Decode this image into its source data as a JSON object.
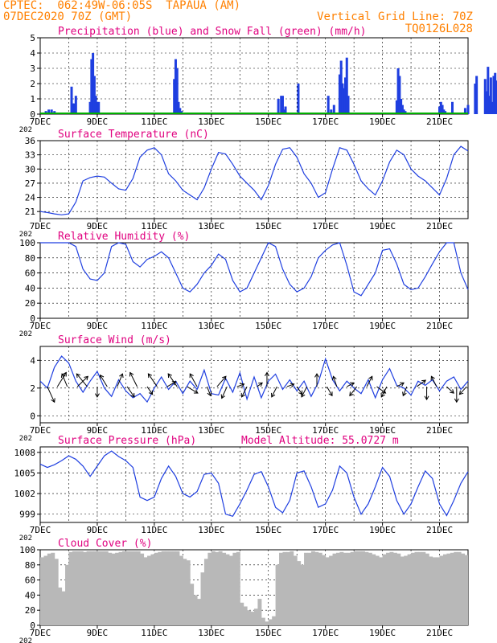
{
  "header": {
    "line1_left": "CPTEC:  062:49W-06:05S  TAPAUA (AM)",
    "line2_left": "07DEC2020 70Z (GMT)",
    "line2_right": "Vertical Grid Line: 70Z",
    "line3_right": "TQ0126L028"
  },
  "colors": {
    "header": "#ff8000",
    "title": "#e0007f",
    "series": "#1f3fe0",
    "snow": "#00b000",
    "cloud": "#b8b8b8"
  },
  "x_ticks": [
    "7DEC",
    "9DEC",
    "11DEC",
    "13DEC",
    "15DEC",
    "17DEC",
    "19DEC",
    "21DEC"
  ],
  "x_year_label": "202",
  "chart_data": [
    {
      "id": "precip",
      "type": "bar",
      "title": "Precipitation (blue) and Snow Fall (green) (mm/h)",
      "ylim": [
        0,
        5
      ],
      "yticks": [
        0,
        1,
        2,
        3,
        4,
        5
      ],
      "x_unit": "days since 07DEC 00Z",
      "series": [
        {
          "name": "Precipitation",
          "x": [
            0.2,
            0.3,
            0.4,
            0.5,
            0.6,
            1.1,
            1.15,
            1.2,
            1.25,
            1.75,
            1.8,
            1.85,
            1.9,
            1.95,
            2.0,
            2.05,
            4.7,
            4.75,
            4.8,
            4.85,
            4.9,
            4.95,
            8.35,
            8.45,
            8.5,
            8.55,
            8.6,
            9.05,
            10.1,
            10.2,
            10.3,
            10.5,
            10.55,
            10.6,
            10.65,
            10.7,
            10.75,
            10.8,
            12.5,
            12.55,
            12.6,
            12.65,
            12.7,
            12.75,
            12.8,
            14.0,
            14.05,
            14.1,
            14.15,
            14.2,
            14.45,
            14.9,
            15.0,
            15.25,
            15.3,
            15.6,
            15.65,
            15.7,
            15.75,
            15.8,
            15.85,
            15.9,
            15.95,
            16.0,
            16.05,
            16.1,
            16.15
          ],
          "values": [
            0.2,
            0.3,
            0.3,
            0.2,
            0.1,
            1.8,
            0.7,
            0.7,
            1.2,
            0.8,
            3.6,
            4.0,
            2.5,
            1.2,
            0.8,
            0.8,
            2.3,
            3.6,
            3.0,
            0.8,
            0.4,
            0.2,
            1.0,
            1.2,
            1.2,
            0.3,
            0.5,
            2.0,
            1.2,
            0.3,
            0.6,
            2.6,
            3.5,
            2.0,
            1.7,
            2.4,
            3.7,
            1.2,
            0.9,
            3.0,
            2.5,
            1.0,
            0.6,
            0.3,
            0.2,
            0.5,
            0.8,
            0.6,
            0.3,
            0.2,
            0.8,
            0.4,
            0.6,
            2.0,
            2.5,
            2.3,
            1.5,
            3.1,
            1.2,
            2.4,
            0.8,
            2.5,
            2.7,
            2.2,
            0.8,
            2.0,
            1.0
          ]
        },
        {
          "name": "Snow Fall",
          "x": [
            0,
            16.3
          ],
          "values": [
            0,
            0
          ]
        }
      ]
    },
    {
      "id": "temperature",
      "type": "line",
      "title": "Surface Temperature (nC)",
      "ylim": [
        19.5,
        36
      ],
      "yticks": [
        21,
        24,
        27,
        30,
        33,
        36
      ],
      "x_step_days": 0.25,
      "series": [
        {
          "name": "Temperature",
          "values": [
            21.0,
            20.8,
            20.5,
            20.3,
            20.5,
            23.0,
            27.5,
            28.2,
            28.5,
            28.3,
            27.0,
            25.8,
            25.5,
            28.0,
            32.5,
            34.0,
            34.5,
            33.0,
            29.0,
            27.5,
            25.5,
            24.5,
            23.5,
            26.0,
            30.0,
            33.5,
            33.2,
            31.0,
            28.5,
            27.0,
            25.5,
            23.5,
            26.5,
            31.0,
            34.2,
            34.5,
            32.5,
            29.0,
            27.0,
            24.0,
            25.0,
            30.0,
            34.5,
            34.0,
            31.0,
            27.5,
            25.8,
            24.5,
            27.5,
            31.5,
            34.0,
            33.0,
            30.0,
            28.5,
            27.5,
            26.0,
            24.5,
            28.0,
            33.0,
            34.8,
            33.8,
            30.5,
            27.5,
            25.5,
            24.0,
            28.0,
            33.0,
            35.2,
            33.5,
            30.0,
            28.5,
            27.0,
            25.2,
            29.5,
            30.5,
            30.0,
            29.0,
            28.5,
            27.0,
            25.3,
            24.8,
            29.0,
            33.0,
            34.2,
            33.0,
            30.5,
            28.0,
            26.5,
            25.0,
            28.0,
            30.5,
            32.0,
            30.5,
            28.0,
            26.0,
            25.0,
            30.0,
            33.5,
            34.2,
            32.5,
            30.0,
            28.0,
            27.0,
            28.5,
            28.0,
            27.5
          ]
        }
      ]
    },
    {
      "id": "humidity",
      "type": "line",
      "title": "Relative Humidity (%)",
      "ylim": [
        0,
        100
      ],
      "yticks": [
        0,
        20,
        40,
        60,
        80,
        100
      ],
      "x_step_days": 0.25,
      "series": [
        {
          "name": "Relative Humidity",
          "values": [
            100,
            100,
            100,
            100,
            100,
            95,
            65,
            52,
            50,
            60,
            95,
            100,
            98,
            75,
            68,
            78,
            82,
            88,
            80,
            60,
            40,
            35,
            45,
            60,
            70,
            85,
            78,
            50,
            35,
            40,
            60,
            80,
            100,
            95,
            65,
            45,
            35,
            40,
            55,
            80,
            90,
            97,
            100,
            70,
            35,
            30,
            45,
            60,
            90,
            92,
            72,
            45,
            38,
            40,
            55,
            72,
            88,
            100,
            100,
            60,
            38,
            40,
            50,
            68,
            90,
            100,
            80,
            55,
            38,
            32,
            40,
            60,
            85,
            65,
            60,
            72,
            75,
            80,
            90,
            80,
            55,
            38,
            42,
            60,
            72,
            90,
            95,
            80,
            55,
            45,
            60,
            82,
            100,
            100,
            95,
            68,
            35,
            32,
            40,
            60,
            80,
            85,
            80,
            62,
            60,
            78
          ]
        }
      ]
    },
    {
      "id": "wind",
      "type": "line",
      "title": "Surface Wind (m/s)",
      "ylim": [
        -0.5,
        5
      ],
      "yticks": [
        0,
        2,
        4
      ],
      "x_step_days": 0.25,
      "series": [
        {
          "name": "Wind Speed",
          "values": [
            2.5,
            2.0,
            3.5,
            4.3,
            3.8,
            2.5,
            1.7,
            2.5,
            3.2,
            2.0,
            1.4,
            2.6,
            1.8,
            1.3,
            1.6,
            1.0,
            2.0,
            2.8,
            1.9,
            2.5,
            1.6,
            2.5,
            1.9,
            3.3,
            1.6,
            1.5,
            2.7,
            1.7,
            3.1,
            1.2,
            2.8,
            1.3,
            2.5,
            3.0,
            1.9,
            2.6,
            1.8,
            2.5,
            1.4,
            2.4,
            4.1,
            2.6,
            1.8,
            2.5,
            2.0,
            1.6,
            2.6,
            1.3,
            2.6,
            3.4,
            2.2,
            2.0,
            1.5,
            2.5,
            2.2,
            2.6,
            1.8,
            2.5,
            2.8,
            1.9,
            2.5,
            2.0,
            1.8,
            2.4,
            3.0,
            1.8,
            3.5,
            2.6,
            2.0,
            2.8,
            1.7,
            2.2,
            2.5,
            3.0,
            1.8,
            2.3,
            2.5,
            2.0,
            2.6,
            2.8,
            1.7,
            1.9,
            3.4,
            2.5,
            2.0,
            2.7,
            3.0,
            2.1,
            2.9,
            1.7,
            1.5,
            2.8,
            3.3,
            1.6,
            2.2,
            0.3,
            3.9,
            2.8,
            3.0,
            2.4,
            2.1,
            4.1,
            3.2,
            2.0,
            0.2,
            2.3
          ]
        },
        {
          "name": "Wind Arrows (m/s)",
          "u": [
            0.4,
            0.5,
            -0.3,
            0.6,
            -0.6,
            0.0,
            -0.4,
            0.3,
            0.4,
            -0.4,
            0.3,
            -0.5,
            0.5,
            -0.5,
            0.6,
            -0.4,
            0.2,
            0.5,
            -0.3,
            0.4,
            -0.3,
            0.3,
            0.0,
            -0.3,
            0.4,
            0.3,
            -0.3,
            0.0,
            0.3,
            -0.2,
            0.4,
            -0.4,
            0.3,
            0.5,
            -0.3,
            0.4,
            -0.2,
            0.5,
            0.0,
            -0.3,
            0.4,
            0.0,
            -0.4
          ],
          "v": [
            -1.2,
            1.1,
            1.0,
            0.8,
            1.0,
            -0.8,
            0.9,
            1.0,
            -0.8,
            1.1,
            -0.6,
            1.0,
            0.4,
            1.0,
            -0.5,
            1.0,
            -0.7,
            0.8,
            -0.9,
            0.2,
            -0.8,
            0.3,
            1.1,
            -0.8,
            0.2,
            -0.6,
            -0.8,
            1.0,
            -0.7,
            0.8,
            0.3,
            -0.7,
            0.8,
            -0.5,
            -0.8,
            0.3,
            -0.7,
            0.5,
            -1.0,
            0.8,
            -0.5,
            -1.2,
            -0.6
          ]
        }
      ]
    },
    {
      "id": "pressure",
      "type": "line",
      "title": "Surface Pressure (hPa)",
      "annotation": "Model Altitude: 55.0727 m",
      "ylim": [
        997.8,
        1008.8
      ],
      "yticks": [
        999,
        1002,
        1005,
        1008
      ],
      "x_step_days": 0.25,
      "series": [
        {
          "name": "Pressure",
          "values": [
            1006.3,
            1005.8,
            1006.2,
            1006.8,
            1007.5,
            1007.0,
            1006.0,
            1004.5,
            1006.0,
            1007.5,
            1008.2,
            1007.4,
            1006.8,
            1005.8,
            1001.5,
            1001.0,
            1001.5,
            1004.2,
            1006.0,
            1004.5,
            1002.0,
            1001.5,
            1002.3,
            1004.8,
            1005.0,
            1003.5,
            999.0,
            998.7,
            1000.5,
            1002.5,
            1004.8,
            1005.2,
            1003.0,
            1000.0,
            999.2,
            1001.0,
            1005.0,
            1005.3,
            1003.0,
            1000.0,
            1000.5,
            1002.5,
            1006.0,
            1005.0,
            1001.5,
            999.0,
            1000.5,
            1003.0,
            1005.8,
            1004.5,
            1001.0,
            999.0,
            1000.5,
            1003.0,
            1005.3,
            1004.2,
            1000.5,
            998.8,
            1001.0,
            1003.5,
            1005.2,
            1004.0,
            1000.2,
            998.8,
            1001.0,
            1003.5,
            1004.8,
            1003.5,
            1001.0,
            999.2,
            1001.0,
            1003.0,
            1004.5,
            1003.0,
            1000.0,
            998.8,
            1000.5,
            1003.0,
            1004.8,
            1003.5,
            1000.0,
            998.8,
            1000.0,
            1002.5,
            1004.5,
            1003.5,
            999.5,
            998.0,
            999.5,
            1002.0,
            1004.0,
            1003.5,
            1000.0,
            998.5,
            999.5,
            1001.5,
            1003.5,
            1003.0,
            999.5,
            998.2,
            999.5,
            1002.0,
            1003.5,
            1002.0,
            999.5,
            997.9,
            999.8
          ]
        }
      ]
    },
    {
      "id": "cloud",
      "type": "bar",
      "title": "Cloud Cover (%)",
      "ylim": [
        0,
        100
      ],
      "yticks": [
        0,
        20,
        40,
        60,
        80,
        100
      ],
      "x_step_days": 0.125,
      "series": [
        {
          "name": "Cloud Cover",
          "values": [
            90,
            92,
            95,
            96,
            88,
            50,
            45,
            80,
            97,
            98,
            98,
            98,
            97,
            98,
            98,
            98,
            98,
            98,
            98,
            96,
            95,
            96,
            97,
            98,
            98,
            98,
            98,
            98,
            95,
            90,
            92,
            94,
            96,
            97,
            98,
            98,
            98,
            98,
            98,
            92,
            88,
            86,
            55,
            40,
            35,
            70,
            88,
            96,
            98,
            97,
            98,
            96,
            94,
            92,
            96,
            97,
            30,
            25,
            20,
            18,
            22,
            35,
            10,
            5,
            8,
            12,
            80,
            96,
            97,
            97,
            98,
            92,
            85,
            80,
            96,
            96,
            98,
            97,
            96,
            93,
            90,
            92,
            95,
            96,
            97,
            96,
            96,
            97,
            98,
            98,
            98,
            97,
            96,
            94,
            92,
            90,
            94,
            96,
            97,
            96,
            95,
            91,
            92,
            94,
            96,
            97,
            97,
            97,
            95,
            91,
            90,
            90,
            92,
            94,
            95,
            96,
            97,
            97,
            95,
            93,
            94,
            95,
            96,
            97,
            96,
            94,
            93,
            93,
            95,
            96,
            97,
            96,
            96,
            95,
            96,
            98,
            98,
            97,
            97,
            96,
            94,
            93,
            92,
            94,
            95,
            96,
            97,
            98,
            97,
            96,
            95,
            96,
            97,
            98,
            98,
            98,
            97,
            96,
            94,
            92,
            92,
            94,
            95,
            96,
            97,
            98,
            98,
            97,
            97,
            96,
            95,
            94,
            96,
            97,
            98,
            98,
            98,
            97,
            96,
            95,
            95,
            96,
            97,
            98,
            98,
            97,
            96,
            94,
            93,
            92,
            93,
            95,
            96,
            97,
            98,
            98,
            98,
            97,
            97,
            96,
            92,
            90,
            90,
            92,
            95,
            96,
            97,
            98,
            98,
            97,
            96,
            94,
            93,
            92,
            92,
            94,
            97,
            98,
            98,
            98,
            97,
            95,
            90,
            85,
            82,
            85,
            90,
            93,
            95,
            96,
            97,
            97,
            96,
            95,
            95,
            96,
            97,
            98,
            98,
            98,
            97,
            96,
            96,
            96,
            97,
            97,
            98,
            98,
            97,
            96,
            95,
            94,
            94,
            95,
            96,
            97,
            98,
            98,
            98,
            97,
            97,
            96,
            95,
            94,
            93,
            95,
            96,
            97,
            98,
            98,
            98,
            97,
            96,
            95,
            95,
            96,
            97,
            98,
            98,
            98,
            98,
            98,
            98,
            98,
            98,
            98,
            98,
            98,
            98,
            98,
            98,
            98,
            98,
            98,
            98,
            98,
            98,
            98,
            98,
            98,
            98,
            98,
            98,
            98,
            98,
            98,
            98,
            98,
            98,
            98,
            98,
            98,
            98,
            98,
            98,
            98,
            98,
            98,
            98,
            98,
            98
          ]
        }
      ]
    }
  ]
}
